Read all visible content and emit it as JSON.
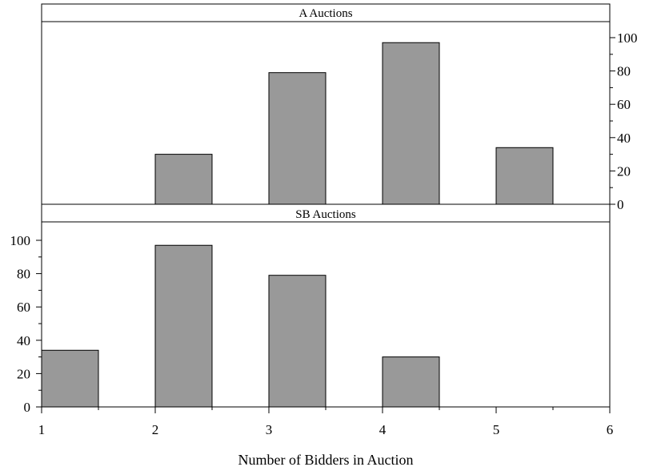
{
  "chart_data": {
    "type": "bar",
    "xlabel": "Number of Bidders in Auction",
    "x_ticks": [
      1,
      2,
      3,
      4,
      5,
      6
    ],
    "bar_width": 0.5,
    "bar_color": "#999999",
    "panels": [
      {
        "title": "A Auctions",
        "y_axis_side": "right",
        "ylim": [
          0,
          110
        ],
        "y_ticks": [
          0,
          20,
          40,
          60,
          80,
          100
        ],
        "bars": [
          {
            "x": 1,
            "value": 0
          },
          {
            "x": 2,
            "value": 30
          },
          {
            "x": 3,
            "value": 79
          },
          {
            "x": 4,
            "value": 97
          },
          {
            "x": 5,
            "value": 34
          }
        ]
      },
      {
        "title": "SB Auctions",
        "y_axis_side": "left",
        "ylim": [
          0,
          110
        ],
        "y_ticks": [
          0,
          20,
          40,
          60,
          80,
          100
        ],
        "bars": [
          {
            "x": 1,
            "value": 34
          },
          {
            "x": 2,
            "value": 97
          },
          {
            "x": 3,
            "value": 79
          },
          {
            "x": 4,
            "value": 30
          },
          {
            "x": 5,
            "value": 0
          }
        ]
      }
    ]
  }
}
